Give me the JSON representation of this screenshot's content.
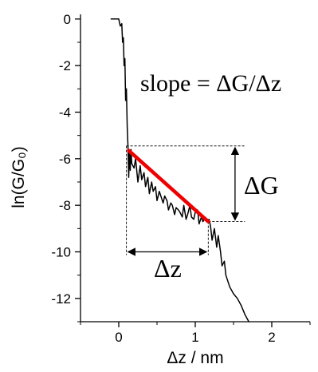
{
  "chart_data": {
    "type": "line",
    "xlabel": "Δz / nm",
    "ylabel": "ln(G/G₀)",
    "xlim": [
      -0.5,
      2.5
    ],
    "ylim": [
      -13,
      0.2
    ],
    "xticks": [
      0,
      1,
      2
    ],
    "xtick_labels": [
      "0",
      "1",
      "2"
    ],
    "yticks": [
      0,
      -2,
      -4,
      -6,
      -8,
      -10,
      -12
    ],
    "ytick_labels": [
      "0",
      "-2",
      "-4",
      "-6",
      "-8",
      "-10",
      "-12"
    ],
    "grid": false,
    "series": [
      {
        "color": "#000000",
        "x": [
          -0.1,
          0.0,
          0.02,
          0.04,
          0.05,
          0.06,
          0.07,
          0.08,
          0.09,
          0.1,
          0.11,
          0.12,
          0.13,
          0.14,
          0.15,
          0.16,
          0.17,
          0.2,
          0.22,
          0.25,
          0.28,
          0.3,
          0.33,
          0.35,
          0.38,
          0.4,
          0.43,
          0.45,
          0.48,
          0.5,
          0.53,
          0.55,
          0.58,
          0.6,
          0.63,
          0.65,
          0.68,
          0.7,
          0.73,
          0.75,
          0.78,
          0.8,
          0.83,
          0.85,
          0.88,
          0.9,
          0.93,
          0.95,
          0.98,
          1.0,
          1.03,
          1.05,
          1.08,
          1.1,
          1.12,
          1.15,
          1.18,
          1.2,
          1.22,
          1.25,
          1.28,
          1.3,
          1.33,
          1.35,
          1.38,
          1.4,
          1.45,
          1.5,
          1.55,
          1.6,
          1.65,
          1.7
        ],
        "values": [
          0.0,
          0.0,
          -0.3,
          -0.2,
          -1.0,
          -0.8,
          -2.0,
          -1.7,
          -3.5,
          -3.0,
          -4.6,
          -5.4,
          -6.8,
          -5.7,
          -6.5,
          -5.6,
          -6.2,
          -6.4,
          -6.0,
          -7.0,
          -6.3,
          -6.9,
          -6.6,
          -7.2,
          -6.8,
          -7.5,
          -7.0,
          -7.4,
          -7.2,
          -7.8,
          -7.4,
          -7.6,
          -7.9,
          -7.6,
          -7.8,
          -8.2,
          -7.9,
          -8.0,
          -8.4,
          -8.1,
          -8.2,
          -8.3,
          -8.5,
          -8.0,
          -8.6,
          -8.4,
          -8.0,
          -8.5,
          -8.6,
          -8.3,
          -8.2,
          -8.8,
          -8.5,
          -8.7,
          -8.6,
          -8.7,
          -8.6,
          -8.9,
          -9.5,
          -9.0,
          -9.8,
          -9.3,
          -10.0,
          -10.6,
          -10.4,
          -11.0,
          -11.5,
          -11.8,
          -12.0,
          -12.3,
          -12.7,
          -13.0
        ]
      },
      {
        "color": "#ee0000",
        "x": [
          0.13,
          1.17
        ],
        "values": [
          -5.65,
          -8.7
        ]
      }
    ],
    "annotations": {
      "slope_text": "slope = ΔG/Δz",
      "delta_g_label": "ΔG",
      "delta_z_label": "Δz",
      "guide_x": [
        0.1,
        1.17
      ],
      "guide_y": [
        -5.45,
        -8.7
      ]
    }
  }
}
